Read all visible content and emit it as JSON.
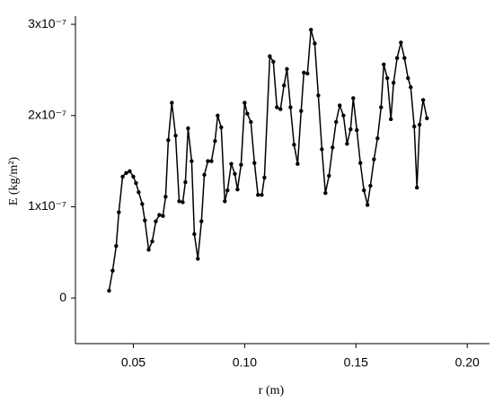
{
  "chart_data": {
    "type": "line",
    "x_label": "r (m)",
    "y_label": "E (kg/m²)",
    "x": [
      0.0391,
      0.0407,
      0.0423,
      0.0435,
      0.0452,
      0.0468,
      0.0484,
      0.05,
      0.0512,
      0.0524,
      0.054,
      0.0552,
      0.0569,
      0.0585,
      0.0601,
      0.0617,
      0.0633,
      0.0645,
      0.0657,
      0.0673,
      0.069,
      0.0706,
      0.0722,
      0.0734,
      0.0746,
      0.0762,
      0.0774,
      0.079,
      0.0806,
      0.0819,
      0.0835,
      0.0851,
      0.0867,
      0.0879,
      0.0895,
      0.0911,
      0.0923,
      0.094,
      0.0956,
      0.0968,
      0.0984,
      0.1,
      0.1012,
      0.1028,
      0.1044,
      0.106,
      0.1077,
      0.1089,
      0.1113,
      0.1129,
      0.1145,
      0.1161,
      0.1177,
      0.119,
      0.1206,
      0.1222,
      0.1238,
      0.1254,
      0.1266,
      0.1282,
      0.1298,
      0.1315,
      0.1331,
      0.1347,
      0.1363,
      0.1379,
      0.1395,
      0.1411,
      0.1427,
      0.1444,
      0.146,
      0.1476,
      0.1488,
      0.1504,
      0.152,
      0.1536,
      0.1552,
      0.1565,
      0.1581,
      0.1597,
      0.1613,
      0.1625,
      0.1641,
      0.1657,
      0.1669,
      0.1685,
      0.1702,
      0.1718,
      0.1734,
      0.1746,
      0.1762,
      0.1774,
      0.1786,
      0.1802,
      0.1819
    ],
    "values": [
      8e-09,
      3e-08,
      5.7e-08,
      9.4e-08,
      1.33e-07,
      1.37e-07,
      1.39e-07,
      1.33e-07,
      1.26e-07,
      1.16e-07,
      1.03e-07,
      8.5e-08,
      5.3e-08,
      6.2e-08,
      8.4e-08,
      9.1e-08,
      9e-08,
      1.11e-07,
      1.73e-07,
      2.14e-07,
      1.78e-07,
      1.06e-07,
      1.05e-07,
      1.27e-07,
      1.86e-07,
      1.5e-07,
      7e-08,
      4.3e-08,
      8.4e-08,
      1.35e-07,
      1.5e-07,
      1.5e-07,
      1.72e-07,
      2e-07,
      1.87e-07,
      1.06e-07,
      1.18e-07,
      1.47e-07,
      1.36e-07,
      1.19e-07,
      1.46e-07,
      2.14e-07,
      2.02e-07,
      1.93e-07,
      1.48e-07,
      1.13e-07,
      1.13e-07,
      1.32e-07,
      2.65e-07,
      2.59e-07,
      2.09e-07,
      2.07e-07,
      2.33e-07,
      2.51e-07,
      2.09e-07,
      1.68e-07,
      1.47e-07,
      2.05e-07,
      2.47e-07,
      2.46e-07,
      2.94e-07,
      2.79e-07,
      2.22e-07,
      1.63e-07,
      1.15e-07,
      1.34e-07,
      1.65e-07,
      1.93e-07,
      2.11e-07,
      2e-07,
      1.69e-07,
      1.85e-07,
      2.19e-07,
      1.84e-07,
      1.48e-07,
      1.18e-07,
      1.02e-07,
      1.23e-07,
      1.52e-07,
      1.75e-07,
      2.09e-07,
      2.56e-07,
      2.41e-07,
      1.96e-07,
      2.36e-07,
      2.63e-07,
      2.8e-07,
      2.63e-07,
      2.41e-07,
      2.31e-07,
      1.88e-07,
      1.21e-07,
      1.9e-07,
      2.17e-07,
      1.97e-07
    ],
    "color": "#000000",
    "markers": true,
    "xlim": [
      0.024,
      0.21
    ],
    "xticks": [
      0.05,
      {
        "value": 0.1,
        "label": "0.10"
      },
      0.15,
      {
        "value": 0.2,
        "label": "0.20"
      }
    ],
    "ylim": [
      -5e-08,
      3.05e-07
    ],
    "yticks": [
      0,
      {
        "value": 1e-07,
        "label": "1x10⁻⁷"
      },
      {
        "value": 2e-07,
        "label": "2x10⁻⁷"
      },
      {
        "value": 3e-07,
        "label": "3x10⁻⁷"
      }
    ],
    "grid": false
  }
}
